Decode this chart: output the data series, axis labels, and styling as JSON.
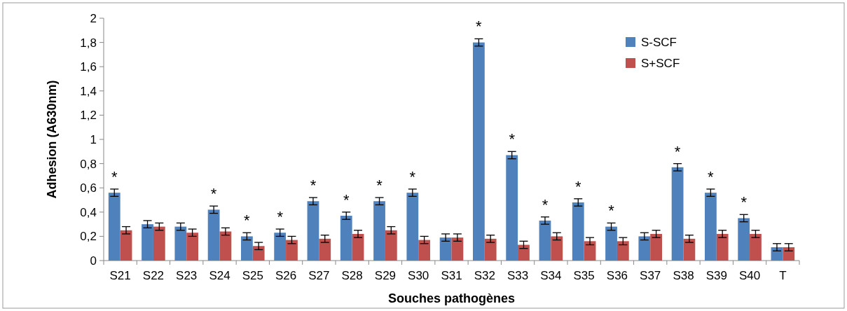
{
  "chart_data": {
    "type": "bar",
    "xlabel": "Souches pathogènes",
    "ylabel": "Adhesion (A630nm)",
    "categories": [
      "S21",
      "S22",
      "S23",
      "S24",
      "S25",
      "S26",
      "S27",
      "S28",
      "S29",
      "S30",
      "S31",
      "S32",
      "S33",
      "S34",
      "S35",
      "S36",
      "S37",
      "S38",
      "S39",
      "S40",
      "T"
    ],
    "series": [
      {
        "name": "S-SCF",
        "color": "#4f81bd",
        "values": [
          0.56,
          0.3,
          0.28,
          0.42,
          0.2,
          0.23,
          0.49,
          0.37,
          0.49,
          0.56,
          0.19,
          1.8,
          0.87,
          0.33,
          0.48,
          0.28,
          0.2,
          0.77,
          0.56,
          0.35,
          0.11
        ],
        "errors": [
          0.03,
          0.03,
          0.03,
          0.03,
          0.03,
          0.03,
          0.03,
          0.03,
          0.03,
          0.03,
          0.03,
          0.03,
          0.03,
          0.03,
          0.03,
          0.03,
          0.03,
          0.03,
          0.03,
          0.03,
          0.03
        ]
      },
      {
        "name": "S+SCF",
        "color": "#c0504d",
        "values": [
          0.25,
          0.28,
          0.23,
          0.24,
          0.12,
          0.17,
          0.18,
          0.22,
          0.25,
          0.17,
          0.19,
          0.18,
          0.13,
          0.2,
          0.16,
          0.16,
          0.22,
          0.18,
          0.22,
          0.22,
          0.11
        ],
        "errors": [
          0.03,
          0.03,
          0.03,
          0.03,
          0.03,
          0.03,
          0.03,
          0.03,
          0.03,
          0.03,
          0.03,
          0.03,
          0.03,
          0.03,
          0.03,
          0.03,
          0.03,
          0.03,
          0.03,
          0.03,
          0.03
        ]
      }
    ],
    "ylim": [
      0,
      2
    ],
    "yticks": [
      0,
      {
        "value": 0.2,
        "label": "0,2"
      },
      {
        "value": 0.4,
        "label": "0,4"
      },
      {
        "value": 0.6,
        "label": "0,6"
      },
      {
        "value": 0.8,
        "label": "0,8"
      },
      1,
      {
        "value": 1.2,
        "label": "1,2"
      },
      {
        "value": 1.4,
        "label": "1,4"
      },
      {
        "value": 1.6,
        "label": "1,6"
      },
      {
        "value": 1.8,
        "label": "1,8"
      },
      2
    ],
    "legend": "top right",
    "annotations": [
      {
        "text": "*",
        "x": "S21",
        "y": 0.56
      },
      {
        "text": "*",
        "x": "S24",
        "y": 0.42
      },
      {
        "text": "*",
        "x": "S25",
        "y": 0.2
      },
      {
        "text": "*",
        "x": "S26",
        "y": 0.23
      },
      {
        "text": "*",
        "x": "S27",
        "y": 0.49
      },
      {
        "text": "*",
        "x": "S28",
        "y": 0.37
      },
      {
        "text": "*",
        "x": "S29",
        "y": 0.49
      },
      {
        "text": "*",
        "x": "S30",
        "y": 0.56
      },
      {
        "text": "*",
        "x": "S32",
        "y": 1.8
      },
      {
        "text": "*",
        "x": "S33",
        "y": 0.87
      },
      {
        "text": "*",
        "x": "S34",
        "y": 0.33
      },
      {
        "text": "*",
        "x": "S35",
        "y": 0.48
      },
      {
        "text": "*",
        "x": "S36",
        "y": 0.28
      },
      {
        "text": "*",
        "x": "S38",
        "y": 0.77
      },
      {
        "text": "*",
        "x": "S39",
        "y": 0.56
      },
      {
        "text": "*",
        "x": "S40",
        "y": 0.35
      }
    ]
  }
}
